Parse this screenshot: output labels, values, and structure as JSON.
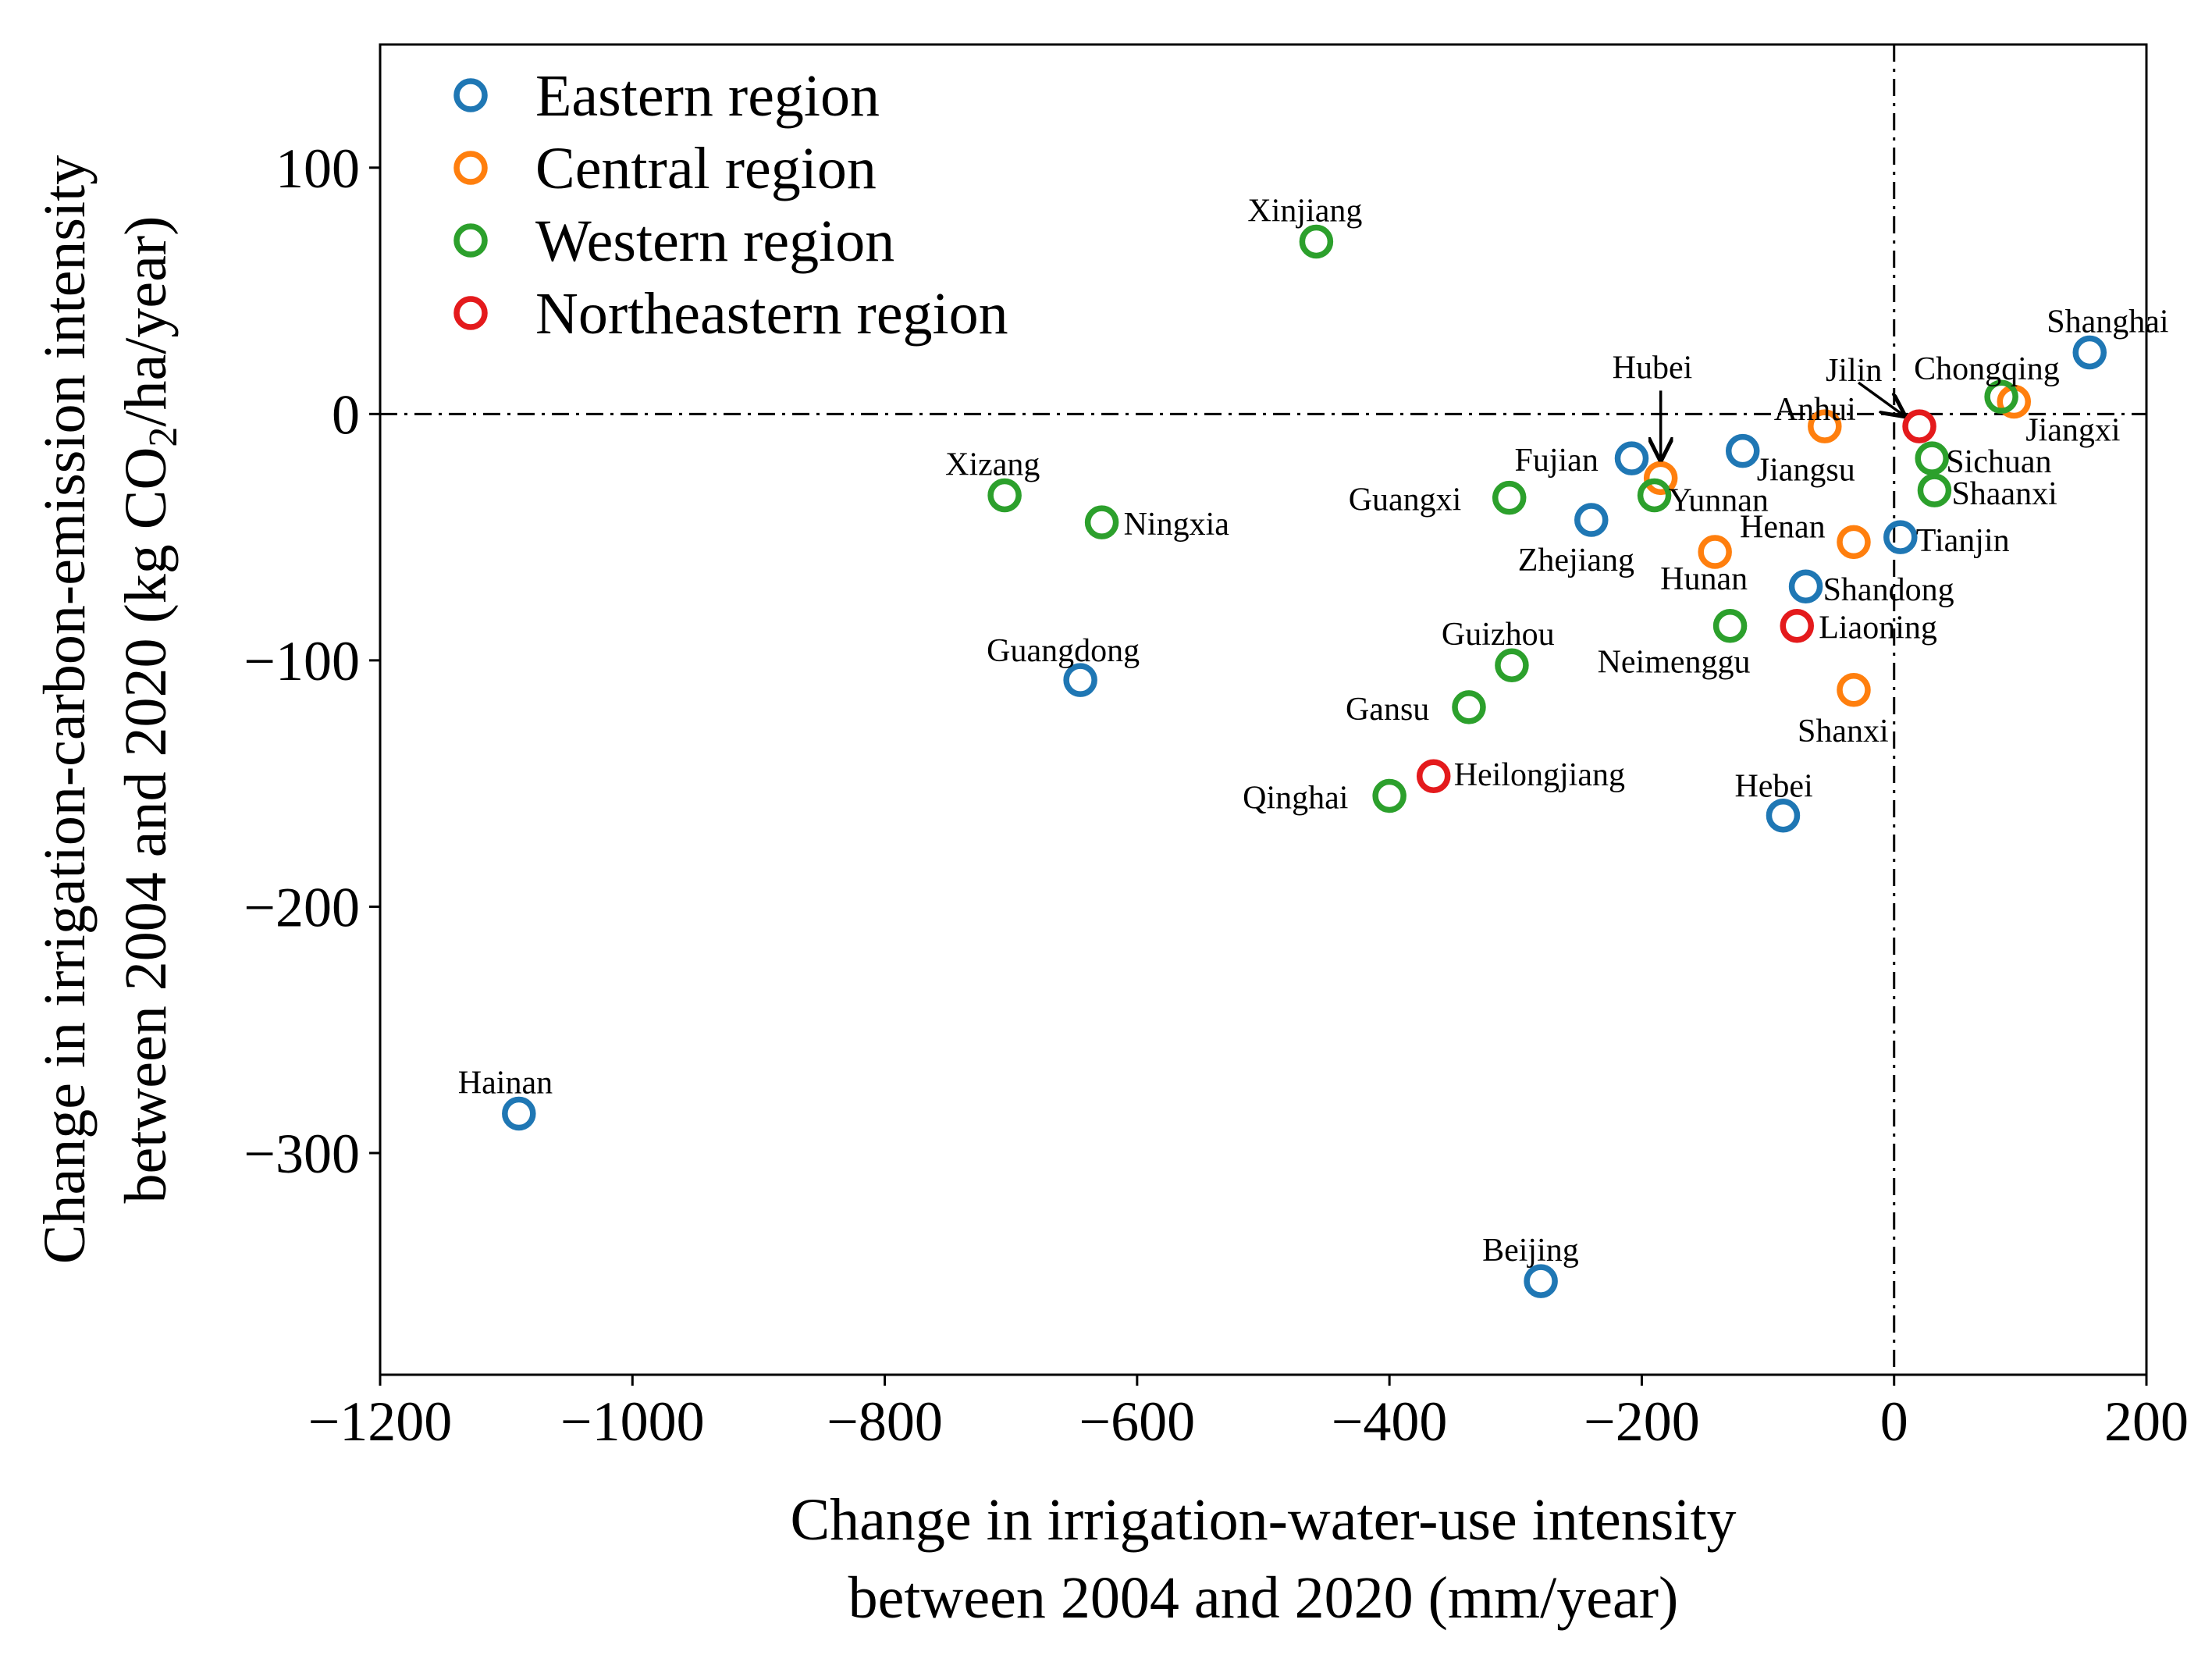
{
  "chart_data": {
    "type": "scatter",
    "xlabel_line1": "Change in irrigation-water-use intensity",
    "xlabel_line2": "between 2004 and 2020 (mm/year)",
    "ylabel_line1": "Change in irrigation-carbon-emission intensity",
    "ylabel_line2_pre": "between 2004 and 2020 (kg CO",
    "ylabel_line2_sub": "2",
    "ylabel_line2_post": "/ha/year)",
    "xlim": [
      -1200,
      200
    ],
    "ylim": [
      -390,
      150
    ],
    "xticks": [
      -1200,
      -1000,
      -800,
      -600,
      -400,
      -200,
      0,
      200
    ],
    "xtick_labels": [
      "−1200",
      "−1000",
      "−800",
      "−600",
      "−400",
      "−200",
      "0",
      "200"
    ],
    "yticks": [
      100,
      0,
      -100,
      -200,
      -300
    ],
    "ytick_labels": [
      "100",
      "0",
      "−100",
      "−200",
      "−300"
    ],
    "reference_lines": {
      "x": 0,
      "y": 0,
      "style": "dash-dot"
    },
    "legend_position": "top-left",
    "regions": [
      {
        "key": "eastern",
        "name": "Eastern region",
        "color": "#1f77b4"
      },
      {
        "key": "central",
        "name": "Central region",
        "color": "#ff7f0e"
      },
      {
        "key": "western",
        "name": "Western region",
        "color": "#2ca02c"
      },
      {
        "key": "northeastern",
        "name": "Northeastern region",
        "color": "#e41a1c"
      }
    ],
    "points": [
      {
        "name": "Shanghai",
        "region": "eastern",
        "x": 155,
        "y": 25
      },
      {
        "name": "Jiangsu",
        "region": "eastern",
        "x": -120,
        "y": -15
      },
      {
        "name": "Fujian",
        "region": "eastern",
        "x": -208,
        "y": -18
      },
      {
        "name": "Zhejiang",
        "region": "eastern",
        "x": -240,
        "y": -43
      },
      {
        "name": "Tianjin",
        "region": "eastern",
        "x": 5,
        "y": -50
      },
      {
        "name": "Shandong",
        "region": "eastern",
        "x": -70,
        "y": -70
      },
      {
        "name": "Guangdong",
        "region": "eastern",
        "x": -645,
        "y": -108
      },
      {
        "name": "Hebei",
        "region": "eastern",
        "x": -88,
        "y": -163
      },
      {
        "name": "Hainan",
        "region": "eastern",
        "x": -1090,
        "y": -284
      },
      {
        "name": "Beijing",
        "region": "eastern",
        "x": -280,
        "y": -352
      },
      {
        "name": "Jiangxi",
        "region": "central",
        "x": 95,
        "y": 5
      },
      {
        "name": "Anhui",
        "region": "central",
        "x": -55,
        "y": -5
      },
      {
        "name": "Hubei",
        "region": "central",
        "x": -185,
        "y": -26
      },
      {
        "name": "Henan",
        "region": "central",
        "x": -32,
        "y": -52
      },
      {
        "name": "Hunan",
        "region": "central",
        "x": -142,
        "y": -56
      },
      {
        "name": "Shanxi",
        "region": "central",
        "x": -32,
        "y": -112
      },
      {
        "name": "Chongqing",
        "region": "western",
        "x": 85,
        "y": 7
      },
      {
        "name": "Sichuan",
        "region": "western",
        "x": 30,
        "y": -18
      },
      {
        "name": "Shaanxi",
        "region": "western",
        "x": 32,
        "y": -31
      },
      {
        "name": "Xinjiang",
        "region": "western",
        "x": -458,
        "y": 70
      },
      {
        "name": "Xizang",
        "region": "western",
        "x": -705,
        "y": -33
      },
      {
        "name": "Ningxia",
        "region": "western",
        "x": -628,
        "y": -44
      },
      {
        "name": "Guangxi",
        "region": "western",
        "x": -305,
        "y": -34
      },
      {
        "name": "Yunnan",
        "region": "western",
        "x": -190,
        "y": -33
      },
      {
        "name": "Neimenggu",
        "region": "western",
        "x": -130,
        "y": -86
      },
      {
        "name": "Guizhou",
        "region": "western",
        "x": -303,
        "y": -102
      },
      {
        "name": "Gansu",
        "region": "western",
        "x": -337,
        "y": -119
      },
      {
        "name": "Qinghai",
        "region": "western",
        "x": -400,
        "y": -155
      },
      {
        "name": "Jilin",
        "region": "northeastern",
        "x": 20,
        "y": -5
      },
      {
        "name": "Liaoning",
        "region": "northeastern",
        "x": -77,
        "y": -86
      },
      {
        "name": "Heilongjiang",
        "region": "northeastern",
        "x": -365,
        "y": -147
      }
    ],
    "arrows": [
      {
        "label": "Hubei",
        "to": "Hubei"
      },
      {
        "label": "Jilin",
        "to": "Jilin"
      }
    ]
  }
}
